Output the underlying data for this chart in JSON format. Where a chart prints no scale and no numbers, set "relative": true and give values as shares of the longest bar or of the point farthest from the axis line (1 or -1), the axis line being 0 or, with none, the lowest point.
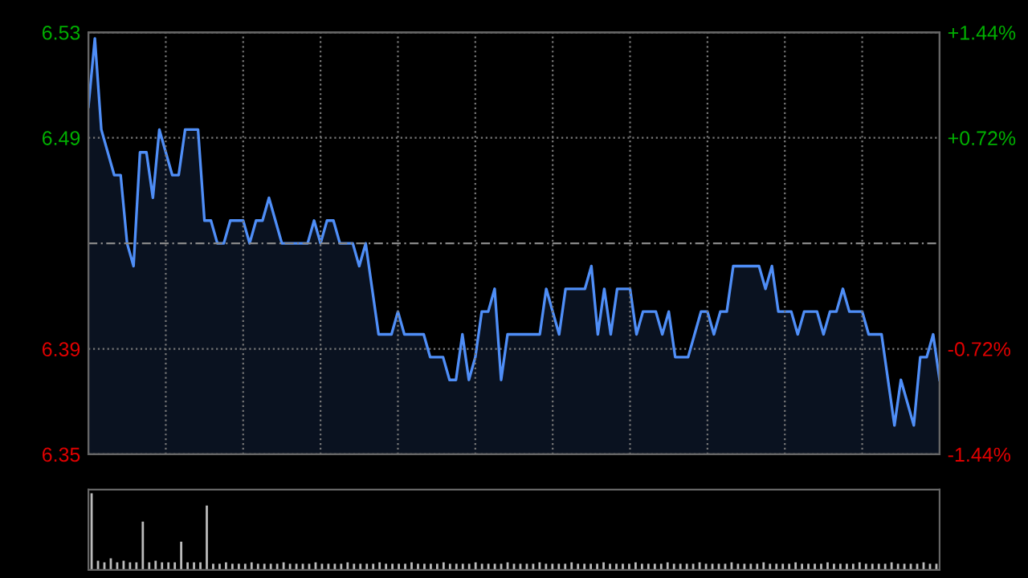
{
  "chart_data": [
    {
      "type": "area",
      "color": "#4f8ef7",
      "ylim": [
        6.3473,
        6.5327
      ],
      "y2lim": [
        -1.44,
        1.44
      ],
      "grid": true,
      "tick_labels": "y",
      "yticks": [
        {
          "value": 6.3473,
          "label": "6.35"
        },
        {
          "value": 6.3936,
          "label": "6.39"
        },
        {
          "value": 6.4864,
          "label": "6.49"
        },
        {
          "value": 6.5327,
          "label": "6.53"
        }
      ],
      "y2ticks": [
        {
          "value": -1.44,
          "label": "-1.44%"
        },
        {
          "value": -0.72,
          "label": "-0.72%"
        },
        {
          "value": 0.72,
          "label": "+0.72%"
        },
        {
          "value": 1.44,
          "label": "+1.44%"
        }
      ],
      "ref_lines": [
        {
          "axis": "y",
          "value": 6.44,
          "line_style": "dashed",
          "color": "#888888"
        }
      ],
      "categories": [
        null,
        null,
        null,
        null,
        null,
        null,
        null,
        null,
        null,
        null,
        null,
        null,
        null,
        null,
        null,
        null,
        null,
        null,
        null,
        null,
        null,
        null,
        null,
        null,
        null,
        null,
        null,
        null,
        null,
        null,
        null,
        null,
        null,
        null,
        null,
        null,
        null,
        null,
        null,
        null,
        null,
        null,
        null,
        null,
        null,
        null,
        null,
        null,
        null,
        null,
        null,
        null,
        null,
        null,
        null,
        null,
        null,
        null,
        null,
        null,
        null,
        null,
        null,
        null,
        null,
        null,
        null,
        null,
        null,
        null,
        null,
        null,
        null,
        null,
        null,
        null,
        null,
        null,
        null,
        null,
        null,
        null,
        null,
        null,
        null,
        null,
        null,
        null,
        null,
        null,
        null,
        null,
        null,
        null,
        null,
        null,
        null,
        null,
        null,
        null,
        null,
        null,
        null,
        null,
        null,
        null,
        null,
        null,
        null,
        null,
        null,
        null,
        null,
        null,
        null,
        null,
        null,
        null,
        null,
        null,
        null,
        null,
        null,
        null,
        null,
        null,
        null,
        null,
        null,
        null,
        null,
        null,
        null
      ],
      "values": [
        6.5,
        6.53,
        6.49,
        6.48,
        6.47,
        6.47,
        6.44,
        6.43,
        6.48,
        6.48,
        6.46,
        6.49,
        6.48,
        6.47,
        6.47,
        6.49,
        6.49,
        6.49,
        6.45,
        6.45,
        6.44,
        6.44,
        6.45,
        6.45,
        6.45,
        6.44,
        6.45,
        6.45,
        6.46,
        6.45,
        6.44,
        6.44,
        6.44,
        6.44,
        6.44,
        6.45,
        6.44,
        6.45,
        6.45,
        6.44,
        6.44,
        6.44,
        6.43,
        6.44,
        6.42,
        6.4,
        6.4,
        6.4,
        6.41,
        6.4,
        6.4,
        6.4,
        6.4,
        6.39,
        6.39,
        6.39,
        6.38,
        6.38,
        6.4,
        6.38,
        6.39,
        6.41,
        6.41,
        6.42,
        6.38,
        6.4,
        6.4,
        6.4,
        6.4,
        6.4,
        6.4,
        6.42,
        6.41,
        6.4,
        6.42,
        6.42,
        6.42,
        6.42,
        6.43,
        6.4,
        6.42,
        6.4,
        6.42,
        6.42,
        6.42,
        6.4,
        6.41,
        6.41,
        6.41,
        6.4,
        6.41,
        6.39,
        6.39,
        6.39,
        6.4,
        6.41,
        6.41,
        6.4,
        6.41,
        6.41,
        6.43,
        6.43,
        6.43,
        6.43,
        6.43,
        6.42,
        6.43,
        6.41,
        6.41,
        6.41,
        6.4,
        6.41,
        6.41,
        6.41,
        6.4,
        6.41,
        6.41,
        6.42,
        6.41,
        6.41,
        6.41,
        6.4,
        6.4,
        6.4,
        6.38,
        6.36,
        6.38,
        6.37,
        6.36,
        6.39,
        6.39,
        6.4,
        6.38
      ]
    },
    {
      "type": "bar",
      "color": "#bbbbbb",
      "relative": true,
      "tick_labels": false,
      "categories": [
        null,
        null,
        null,
        null,
        null,
        null,
        null,
        null,
        null,
        null,
        null,
        null,
        null,
        null,
        null,
        null,
        null,
        null,
        null,
        null,
        null,
        null,
        null,
        null,
        null,
        null,
        null,
        null,
        null,
        null,
        null,
        null,
        null,
        null,
        null,
        null,
        null,
        null,
        null,
        null,
        null,
        null,
        null,
        null,
        null,
        null,
        null,
        null,
        null,
        null,
        null,
        null,
        null,
        null,
        null,
        null,
        null,
        null,
        null,
        null,
        null,
        null,
        null,
        null,
        null,
        null,
        null,
        null,
        null,
        null,
        null,
        null,
        null,
        null,
        null,
        null,
        null,
        null,
        null,
        null,
        null,
        null,
        null,
        null,
        null,
        null,
        null,
        null,
        null,
        null,
        null,
        null,
        null,
        null,
        null,
        null,
        null,
        null,
        null,
        null,
        null,
        null,
        null,
        null,
        null,
        null,
        null,
        null,
        null,
        null,
        null,
        null,
        null,
        null,
        null,
        null,
        null,
        null,
        null,
        null,
        null,
        null,
        null,
        null,
        null,
        null,
        null,
        null,
        null,
        null,
        null,
        null,
        null
      ],
      "values": [
        1,
        0.12,
        0.1,
        0.15,
        0.1,
        0.12,
        0.1,
        0.1,
        0.63,
        0.1,
        0.12,
        0.1,
        0.1,
        0.1,
        0.37,
        0.1,
        0.1,
        0.1,
        0.84,
        0.08,
        0.08,
        0.1,
        0.08,
        0.08,
        0.08,
        0.1,
        0.08,
        0.08,
        0.08,
        0.08,
        0.1,
        0.08,
        0.08,
        0.08,
        0.08,
        0.1,
        0.08,
        0.08,
        0.08,
        0.08,
        0.1,
        0.08,
        0.08,
        0.08,
        0.08,
        0.1,
        0.08,
        0.08,
        0.08,
        0.08,
        0.1,
        0.08,
        0.08,
        0.08,
        0.08,
        0.1,
        0.08,
        0.08,
        0.08,
        0.08,
        0.1,
        0.08,
        0.08,
        0.08,
        0.08,
        0.1,
        0.08,
        0.08,
        0.08,
        0.08,
        0.1,
        0.08,
        0.08,
        0.08,
        0.08,
        0.1,
        0.08,
        0.08,
        0.08,
        0.08,
        0.1,
        0.08,
        0.08,
        0.08,
        0.08,
        0.1,
        0.08,
        0.08,
        0.08,
        0.08,
        0.1,
        0.08,
        0.08,
        0.08,
        0.08,
        0.1,
        0.08,
        0.08,
        0.08,
        0.08,
        0.1,
        0.08,
        0.08,
        0.08,
        0.08,
        0.1,
        0.08,
        0.08,
        0.08,
        0.08,
        0.1,
        0.08,
        0.08,
        0.08,
        0.08,
        0.1,
        0.08,
        0.08,
        0.08,
        0.08,
        0.1,
        0.08,
        0.08,
        0.08,
        0.08,
        0.1,
        0.08,
        0.08,
        0.08,
        0.08,
        0.1,
        0.08,
        0.08
      ]
    }
  ]
}
